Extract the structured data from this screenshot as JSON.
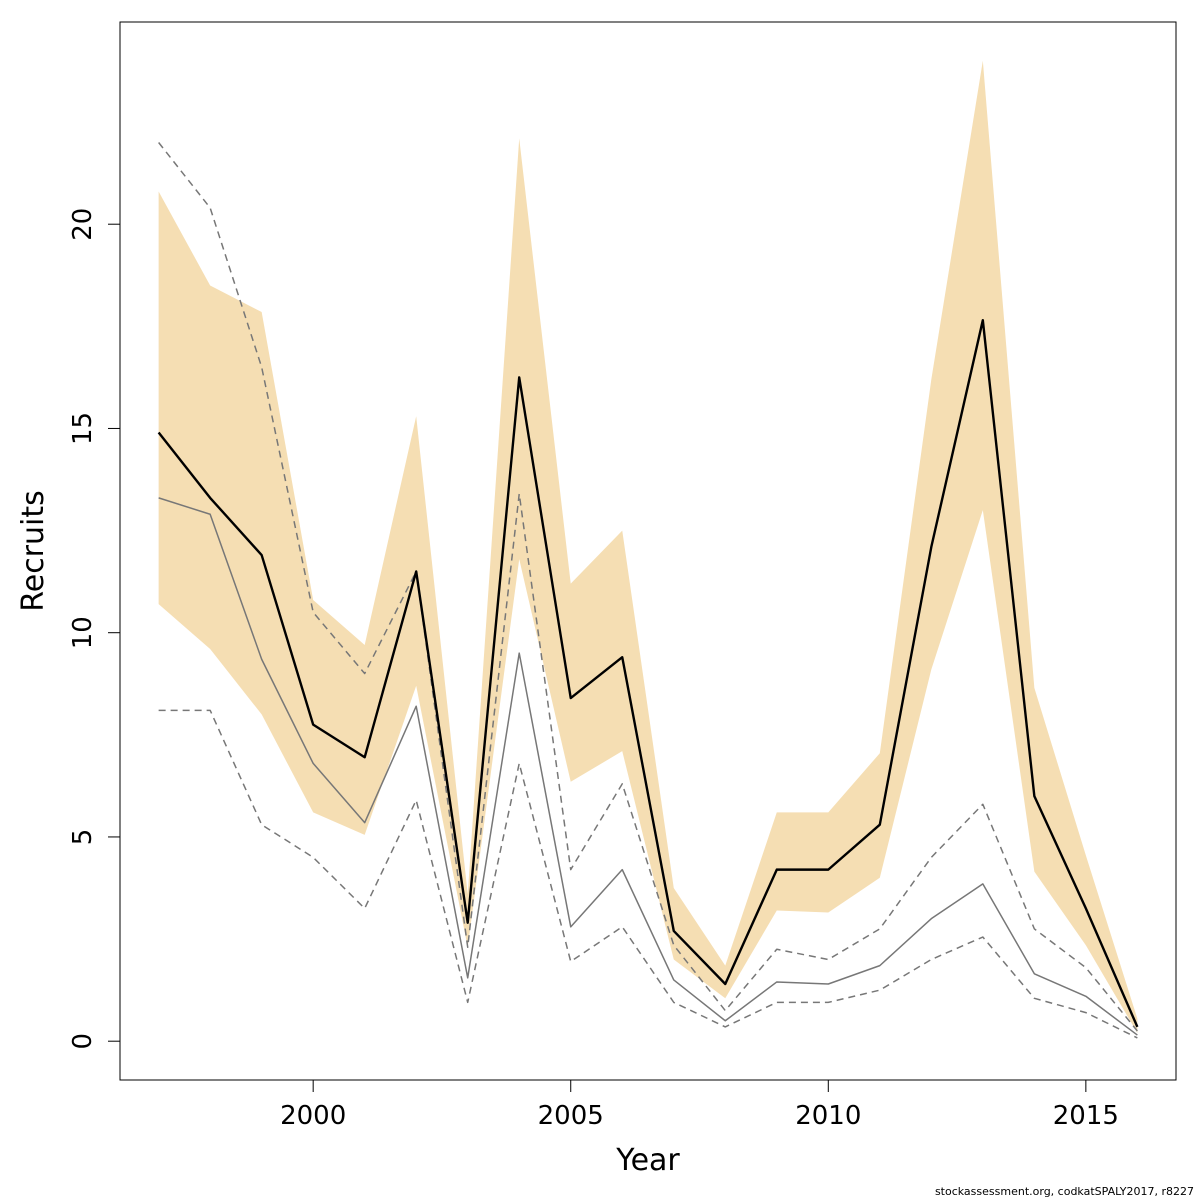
{
  "chart_data": {
    "type": "line",
    "xlabel": "Year",
    "ylabel": "Recruits",
    "xlim": [
      1996.25,
      2016.75
    ],
    "ylim": [
      -0.95,
      24.95
    ],
    "xticks": [
      2000,
      2005,
      2010,
      2015
    ],
    "yticks": [
      0,
      5,
      10,
      15,
      20
    ],
    "x": [
      1997,
      1998,
      1999,
      2000,
      2001,
      2002,
      2003,
      2004,
      2005,
      2006,
      2007,
      2008,
      2009,
      2010,
      2011,
      2012,
      2013,
      2014,
      2015,
      2016
    ],
    "band": {
      "color": "#f5deb3",
      "lower": [
        10.7,
        9.6,
        8.0,
        5.6,
        5.05,
        8.7,
        2.3,
        11.8,
        6.35,
        7.1,
        2.0,
        1.05,
        3.2,
        3.15,
        4.0,
        9.1,
        13.0,
        4.15,
        2.35,
        0.2
      ],
      "upper": [
        20.8,
        18.5,
        17.85,
        10.8,
        9.7,
        15.3,
        3.6,
        22.1,
        11.2,
        12.5,
        3.75,
        1.85,
        5.6,
        5.6,
        7.05,
        16.2,
        24.0,
        8.65,
        4.55,
        0.55
      ]
    },
    "series": [
      {
        "color": "#000000",
        "style": "solid",
        "values": [
          14.9,
          13.3,
          11.9,
          7.75,
          6.95,
          11.5,
          2.9,
          16.25,
          8.4,
          9.4,
          2.7,
          1.4,
          4.2,
          4.2,
          5.3,
          12.1,
          17.65,
          6.0,
          3.25,
          0.35
        ]
      },
      {
        "color": "#777777",
        "style": "solid",
        "values": [
          13.3,
          12.9,
          9.35,
          6.8,
          5.35,
          8.2,
          1.55,
          9.5,
          2.8,
          4.2,
          1.5,
          0.5,
          1.45,
          1.4,
          1.85,
          3.0,
          3.85,
          1.65,
          1.1,
          0.15
        ]
      },
      {
        "color": "#777777",
        "style": "dashed",
        "values": [
          22.0,
          20.4,
          16.5,
          10.5,
          9.0,
          11.5,
          2.3,
          13.4,
          4.2,
          6.3,
          2.35,
          0.75,
          2.25,
          2.0,
          2.75,
          4.5,
          5.8,
          2.75,
          1.8,
          0.25
        ]
      },
      {
        "color": "#777777",
        "style": "dashed",
        "values": [
          8.1,
          8.1,
          5.3,
          4.5,
          3.25,
          5.9,
          0.95,
          6.8,
          1.95,
          2.8,
          0.95,
          0.35,
          0.95,
          0.95,
          1.25,
          2.0,
          2.55,
          1.05,
          0.7,
          0.08
        ]
      }
    ]
  },
  "footer": "stockassessment.org, codkatSPALY2017, r8227"
}
